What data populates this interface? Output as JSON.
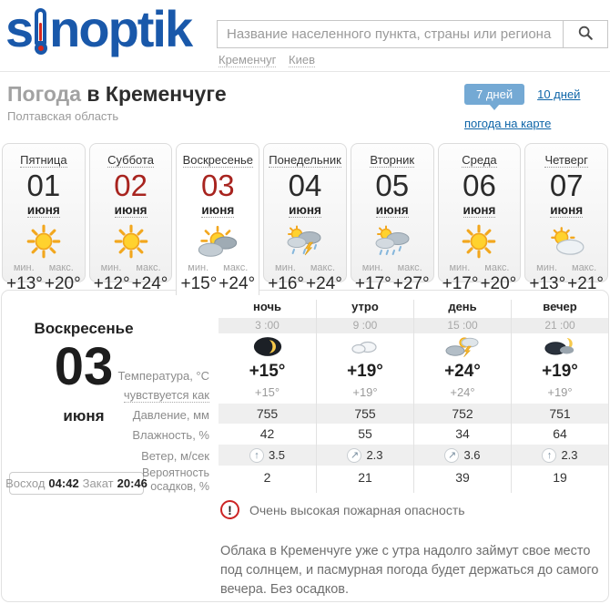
{
  "header": {
    "logo": {
      "text_before": "s",
      "text_after": "noptik"
    },
    "search": {
      "placeholder": "Название населенного пункта, страны или региона"
    },
    "quick_links": [
      {
        "label": "Кременчуг"
      },
      {
        "label": "Киев"
      }
    ]
  },
  "title": {
    "prefix": "Погода",
    "city": "в Кременчуге",
    "region": "Полтавская область"
  },
  "tabs": {
    "days7": "7 дней",
    "days10": "10 дней",
    "map": "погода на карте"
  },
  "labels": {
    "min": "мин.",
    "max": "макс."
  },
  "days": [
    {
      "name": "Пятница",
      "date": "01",
      "month": "июня",
      "icon": "sun",
      "min": "+13°",
      "max": "+20°",
      "weekend": false,
      "selected": false
    },
    {
      "name": "Суббота",
      "date": "02",
      "month": "июня",
      "icon": "sun",
      "min": "+12°",
      "max": "+24°",
      "weekend": true,
      "selected": false
    },
    {
      "name": "Воскресенье",
      "date": "03",
      "month": "июня",
      "icon": "sun-clouds",
      "min": "+15°",
      "max": "+24°",
      "weekend": true,
      "selected": true
    },
    {
      "name": "Понедельник",
      "date": "04",
      "month": "июня",
      "icon": "sun-rain-storm",
      "min": "+16°",
      "max": "+24°",
      "weekend": false,
      "selected": false
    },
    {
      "name": "Вторник",
      "date": "05",
      "month": "июня",
      "icon": "sun-rain",
      "min": "+17°",
      "max": "+27°",
      "weekend": false,
      "selected": false
    },
    {
      "name": "Среда",
      "date": "06",
      "month": "июня",
      "icon": "sun",
      "min": "+17°",
      "max": "+20°",
      "weekend": false,
      "selected": false
    },
    {
      "name": "Четверг",
      "date": "07",
      "month": "июня",
      "icon": "sun-cloud",
      "min": "+13°",
      "max": "+21°",
      "weekend": false,
      "selected": false
    }
  ],
  "detail": {
    "day_name": "Воскресенье",
    "date": "03",
    "month": "июня",
    "sunrise_label": "Восход",
    "sunrise": "04:42",
    "sunset_label": "Закат",
    "sunset": "20:46"
  },
  "hourly": {
    "labels": {
      "temperature": "Температура, °C",
      "feels": "чувствуется как",
      "pressure": "Давление, мм",
      "humidity": "Влажность, %",
      "wind": "Ветер, м/сек",
      "precip_line1": "Вероятность",
      "precip_line2": "осадков, %"
    },
    "columns": [
      {
        "part": "ночь",
        "time": "3 :00",
        "icon": "moon",
        "temp": "+15°",
        "feels": "+15°",
        "pressure": "755",
        "humidity": "42",
        "wind_arrow": "↑",
        "wind": "3.5",
        "precip": "2"
      },
      {
        "part": "утро",
        "time": "9 :00",
        "icon": "cloud",
        "temp": "+19°",
        "feels": "+19°",
        "pressure": "755",
        "humidity": "55",
        "wind_arrow": "↗",
        "wind": "2.3",
        "precip": "21"
      },
      {
        "part": "день",
        "time": "15 :00",
        "icon": "clouds-storm",
        "temp": "+24°",
        "feels": "+24°",
        "pressure": "752",
        "humidity": "34",
        "wind_arrow": "↗",
        "wind": "3.6",
        "precip": "39"
      },
      {
        "part": "вечер",
        "time": "21 :00",
        "icon": "moon-cloud",
        "temp": "+19°",
        "feels": "+19°",
        "pressure": "751",
        "humidity": "64",
        "wind_arrow": "↑",
        "wind": "2.3",
        "precip": "19"
      }
    ]
  },
  "warning": {
    "text": "Очень высокая пожарная опасность"
  },
  "description": "Облака в Кременчуге уже с утра надолго займут свое место под солнцем, и пасмурная погода будет держаться до самого вечера. Без осадков.",
  "colors": {
    "logo_blue": "#1958aa",
    "link_blue": "#0e65a8",
    "active_tab_blue": "#74a9d4",
    "weekend_red": "#a8241f",
    "warning_red": "#cc2424"
  }
}
